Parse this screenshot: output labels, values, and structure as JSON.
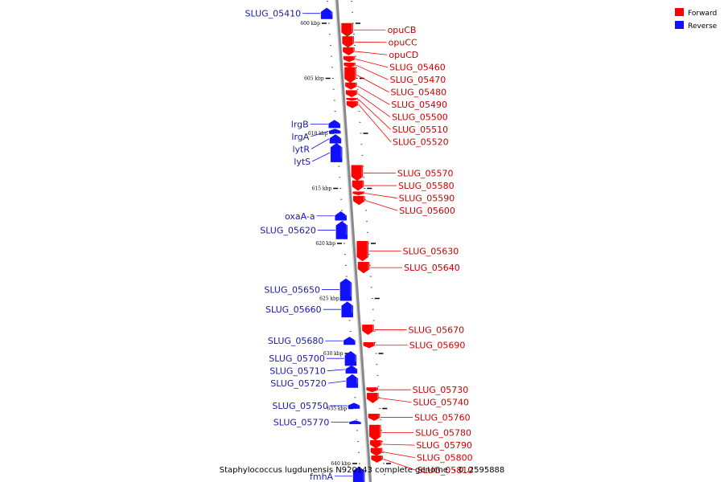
{
  "colors": {
    "forward": "#ff0000",
    "reverse": "#1010ff",
    "forward_text": "#cc0000",
    "reverse_text": "#1a1aa8",
    "backbone": "#888888"
  },
  "legend": [
    {
      "label": "Forward",
      "strand": "forward"
    },
    {
      "label": "Reverse",
      "strand": "reverse"
    }
  ],
  "caption": "Staphylococcus lugdunensis N920143 complete genome. - 0..2595888",
  "ticks": [
    {
      "kbp": 600,
      "label": "600 kbp"
    },
    {
      "kbp": 605,
      "label": "605 kbp"
    },
    {
      "kbp": 610,
      "label": "610 kbp"
    },
    {
      "kbp": 615,
      "label": "615 kbp"
    },
    {
      "kbp": 620,
      "label": "620 kbp"
    },
    {
      "kbp": 625,
      "label": "625 kbp"
    },
    {
      "kbp": 630,
      "label": "630 kbp"
    },
    {
      "kbp": 635,
      "label": "635 kbp"
    },
    {
      "kbp": 640,
      "label": "640 kbp"
    }
  ],
  "genes": [
    {
      "name": "SLUG_05410",
      "strand": "reverse",
      "start_kbp": 598.6,
      "end_kbp": 599.6
    },
    {
      "name": "opuCB",
      "strand": "forward",
      "start_kbp": 600.0,
      "end_kbp": 601.2
    },
    {
      "name": "opuCC",
      "strand": "forward",
      "start_kbp": 601.2,
      "end_kbp": 602.2
    },
    {
      "name": "opuCD",
      "strand": "forward",
      "start_kbp": 602.2,
      "end_kbp": 602.9
    },
    {
      "name": "SLUG_05460",
      "strand": "forward",
      "start_kbp": 603.0,
      "end_kbp": 603.5
    },
    {
      "name": "SLUG_05470",
      "strand": "forward",
      "start_kbp": 603.6,
      "end_kbp": 604.0
    },
    {
      "name": "SLUG_05480",
      "strand": "forward",
      "start_kbp": 604.0,
      "end_kbp": 605.4
    },
    {
      "name": "SLUG_05490",
      "strand": "forward",
      "start_kbp": 605.4,
      "end_kbp": 606.0
    },
    {
      "name": "SLUG_05500",
      "strand": "forward",
      "start_kbp": 606.1,
      "end_kbp": 606.7
    },
    {
      "name": "SLUG_05510",
      "strand": "forward",
      "start_kbp": 606.8,
      "end_kbp": 607.0
    },
    {
      "name": "SLUG_05520",
      "strand": "forward",
      "start_kbp": 607.1,
      "end_kbp": 607.7
    },
    {
      "name": "lrgB",
      "strand": "reverse",
      "start_kbp": 608.8,
      "end_kbp": 609.5
    },
    {
      "name": "lrgA",
      "strand": "reverse",
      "start_kbp": 609.6,
      "end_kbp": 610.0
    },
    {
      "name": "lytR",
      "strand": "reverse",
      "start_kbp": 610.1,
      "end_kbp": 610.9
    },
    {
      "name": "lytS",
      "strand": "reverse",
      "start_kbp": 610.9,
      "end_kbp": 612.6
    },
    {
      "name": "SLUG_05570",
      "strand": "forward",
      "start_kbp": 612.9,
      "end_kbp": 614.3
    },
    {
      "name": "SLUG_05580",
      "strand": "forward",
      "start_kbp": 614.3,
      "end_kbp": 615.2
    },
    {
      "name": "SLUG_05590",
      "strand": "forward",
      "start_kbp": 615.3,
      "end_kbp": 615.6
    },
    {
      "name": "SLUG_05600",
      "strand": "forward",
      "start_kbp": 615.7,
      "end_kbp": 616.5
    },
    {
      "name": "oxaA-a",
      "strand": "reverse",
      "start_kbp": 617.1,
      "end_kbp": 617.9
    },
    {
      "name": "SLUG_05620",
      "strand": "reverse",
      "start_kbp": 618.0,
      "end_kbp": 619.6
    },
    {
      "name": "SLUG_05630",
      "strand": "forward",
      "start_kbp": 619.8,
      "end_kbp": 621.6
    },
    {
      "name": "SLUG_05640",
      "strand": "forward",
      "start_kbp": 621.7,
      "end_kbp": 622.7
    },
    {
      "name": "SLUG_05650",
      "strand": "reverse",
      "start_kbp": 623.2,
      "end_kbp": 625.2
    },
    {
      "name": "SLUG_05660",
      "strand": "reverse",
      "start_kbp": 625.3,
      "end_kbp": 626.7
    },
    {
      "name": "SLUG_05670",
      "strand": "forward",
      "start_kbp": 627.4,
      "end_kbp": 628.3
    },
    {
      "name": "SLUG_05680",
      "strand": "reverse",
      "start_kbp": 628.5,
      "end_kbp": 629.2
    },
    {
      "name": "SLUG_05690",
      "strand": "forward",
      "start_kbp": 629.0,
      "end_kbp": 629.5
    },
    {
      "name": "SLUG_05700",
      "strand": "reverse",
      "start_kbp": 629.8,
      "end_kbp": 631.1
    },
    {
      "name": "SLUG_05710",
      "strand": "reverse",
      "start_kbp": 631.1,
      "end_kbp": 631.8
    },
    {
      "name": "SLUG_05720",
      "strand": "reverse",
      "start_kbp": 631.9,
      "end_kbp": 633.1
    },
    {
      "name": "SLUG_05730",
      "strand": "forward",
      "start_kbp": 633.1,
      "end_kbp": 633.5
    },
    {
      "name": "SLUG_05740",
      "strand": "forward",
      "start_kbp": 633.6,
      "end_kbp": 634.5
    },
    {
      "name": "SLUG_05750",
      "strand": "reverse",
      "start_kbp": 634.5,
      "end_kbp": 635.0
    },
    {
      "name": "SLUG_05760",
      "strand": "forward",
      "start_kbp": 635.5,
      "end_kbp": 636.1
    },
    {
      "name": "SLUG_05770",
      "strand": "reverse",
      "start_kbp": 636.1,
      "end_kbp": 636.4
    },
    {
      "name": "SLUG_05780",
      "strand": "forward",
      "start_kbp": 636.5,
      "end_kbp": 637.9
    },
    {
      "name": "SLUG_05790",
      "strand": "forward",
      "start_kbp": 637.9,
      "end_kbp": 638.6
    },
    {
      "name": "SLUG_05800",
      "strand": "forward",
      "start_kbp": 638.6,
      "end_kbp": 639.3
    },
    {
      "name": "SLUG_05810",
      "strand": "forward",
      "start_kbp": 639.3,
      "end_kbp": 639.9
    },
    {
      "name": "fmhA",
      "strand": "reverse",
      "start_kbp": 640.3,
      "end_kbp": 642.0
    }
  ]
}
